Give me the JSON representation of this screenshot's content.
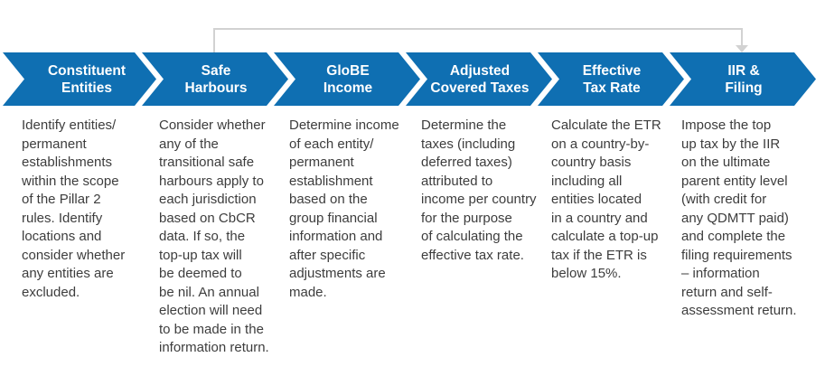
{
  "colors": {
    "chevron_blue": "#0f6fb2",
    "connector_gray": "#d2d2d2",
    "body_text_gray": "#3d3d3d",
    "label_white": "#ffffff"
  },
  "steps": [
    {
      "label": "Constituent\nEntities",
      "description": "Identify entities/\npermanent\nestablishments\nwithin the scope\nof the Pillar 2\nrules. Identify\nlocations and\nconsider whether\nany entities are\nexcluded."
    },
    {
      "label": "Safe\nHarbours",
      "description": "Consider whether\nany of the\ntransitional safe\nharbours apply to\neach jurisdiction\nbased on CbCR\ndata. If so, the\ntop-up tax will\nbe deemed to\nbe nil. An annual\nelection will need\nto be made in the\ninformation return."
    },
    {
      "label": "GloBE\nIncome",
      "description": "Determine income\nof each entity/\npermanent\nestablishment\nbased on the\ngroup financial\ninformation and\nafter specific\nadjustments are\nmade."
    },
    {
      "label": "Adjusted\nCovered Taxes",
      "description": "Determine the\ntaxes (including\ndeferred taxes)\nattributed to\nincome per country\nfor the purpose\nof calculating the\neffective tax rate."
    },
    {
      "label": "Effective\nTax Rate",
      "description": "Calculate the ETR\non a country-by-\ncountry basis\nincluding all\nentities located\nin a country and\ncalculate a top-up\ntax if the ETR is\nbelow 15%."
    },
    {
      "label": "IIR &\nFiling",
      "description": "Impose the top\nup tax by the IIR\non the ultimate\nparent entity level\n(with credit for\nany QDMTT paid)\nand complete the\nfiling requirements\n– information\nreturn and self-\nassessment return."
    }
  ]
}
